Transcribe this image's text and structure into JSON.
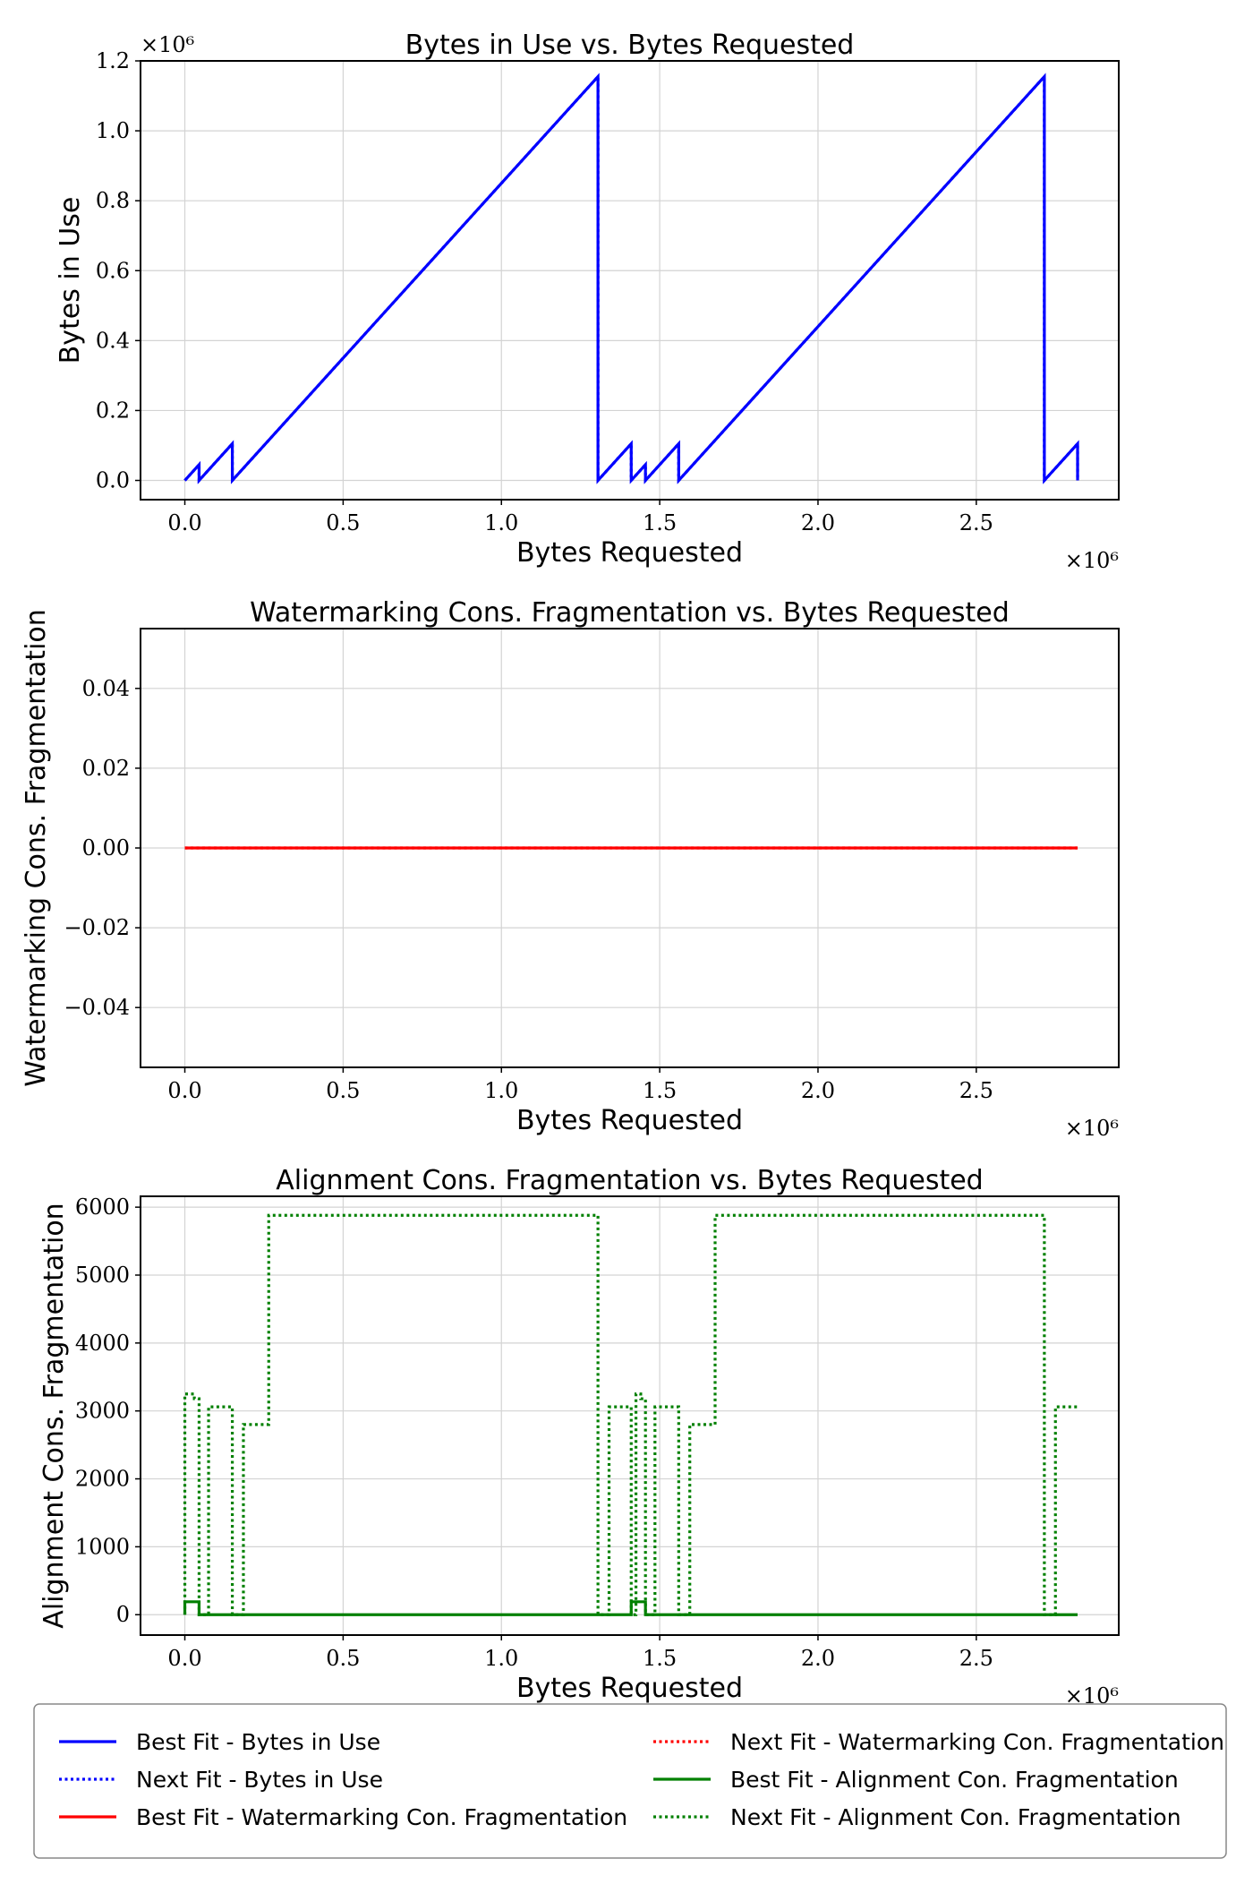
{
  "chart_data": [
    {
      "type": "line",
      "title": "Bytes in Use vs. Bytes Requested",
      "xlabel": "Bytes Requested",
      "ylabel": "Bytes in Use",
      "xlim": [
        -0.14,
        2.95
      ],
      "ylim": [
        -0.055,
        1.2
      ],
      "x_multiplier": "×10⁶",
      "y_multiplier": "×10⁶",
      "xticks": [
        0.0,
        0.5,
        1.0,
        1.5,
        2.0,
        2.5
      ],
      "yticks": [
        0.0,
        0.2,
        0.4,
        0.6,
        0.8,
        1.0,
        1.2
      ],
      "xtick_labels": [
        "0.0",
        "0.5",
        "1.0",
        "1.5",
        "2.0",
        "2.5"
      ],
      "ytick_labels": [
        "0.0",
        "0.2",
        "0.4",
        "0.6",
        "0.8",
        "1.0",
        "1.2"
      ],
      "ytick_decimals": 1,
      "series": [
        {
          "name": "Best Fit - Bytes in Use",
          "color": "#0000ff",
          "style": "solid",
          "x": [
            0.0,
            0.045,
            0.045,
            0.15,
            0.15,
            1.305,
            1.305,
            1.41,
            1.41,
            1.455,
            1.455,
            1.56,
            1.56,
            2.715,
            2.715,
            2.82,
            2.82
          ],
          "y": [
            0.0,
            0.045,
            0.0,
            0.105,
            0.0,
            1.155,
            0.0,
            0.105,
            0.0,
            0.045,
            0.0,
            0.105,
            0.0,
            1.155,
            0.0,
            0.105,
            0.0
          ]
        },
        {
          "name": "Next Fit - Bytes in Use",
          "color": "#0000ff",
          "style": "dotted",
          "x": [
            0.0,
            0.045,
            0.045,
            0.15,
            0.15,
            1.305,
            1.305,
            1.41,
            1.41,
            1.455,
            1.455,
            1.56,
            1.56,
            2.715,
            2.715,
            2.82,
            2.82
          ],
          "y": [
            0.0,
            0.045,
            0.0,
            0.105,
            0.0,
            1.155,
            0.0,
            0.105,
            0.0,
            0.045,
            0.0,
            0.105,
            0.0,
            1.155,
            0.0,
            0.105,
            0.0
          ]
        }
      ],
      "grid": true
    },
    {
      "type": "line",
      "title": "Watermarking Cons. Fragmentation vs. Bytes Requested",
      "xlabel": "Bytes Requested",
      "ylabel": "Watermarking Cons. Fragmentation",
      "xlim": [
        -0.14,
        2.95
      ],
      "ylim": [
        -0.055,
        0.055
      ],
      "x_multiplier": "×10⁶",
      "xticks": [
        0.0,
        0.5,
        1.0,
        1.5,
        2.0,
        2.5
      ],
      "yticks": [
        -0.04,
        -0.02,
        0.0,
        0.02,
        0.04
      ],
      "xtick_labels": [
        "0.0",
        "0.5",
        "1.0",
        "1.5",
        "2.0",
        "2.5"
      ],
      "ytick_labels": [
        "−0.04",
        "−0.02",
        "0.00",
        "0.02",
        "0.04"
      ],
      "ytick_decimals": 2,
      "series": [
        {
          "name": "Best Fit - Watermarking Con. Fragmentation",
          "color": "#ff0000",
          "style": "solid",
          "x": [
            0.0,
            2.82
          ],
          "y": [
            0.0,
            0.0
          ]
        },
        {
          "name": "Next Fit - Watermarking Con. Fragmentation",
          "color": "#ff0000",
          "style": "dotted",
          "x": [
            0.0,
            2.82
          ],
          "y": [
            0.0,
            0.0
          ]
        }
      ],
      "grid": true
    },
    {
      "type": "line",
      "title": "Alignment Cons. Fragmentation vs. Bytes Requested",
      "xlabel": "Bytes Requested",
      "ylabel": "Alignment Cons. Fragmentation",
      "xlim": [
        -0.14,
        2.95
      ],
      "ylim": [
        -300,
        6160
      ],
      "x_multiplier": "×10⁶",
      "xticks": [
        0.0,
        0.5,
        1.0,
        1.5,
        2.0,
        2.5
      ],
      "yticks": [
        0,
        1000,
        2000,
        3000,
        4000,
        5000,
        6000
      ],
      "xtick_labels": [
        "0.0",
        "0.5",
        "1.0",
        "1.5",
        "2.0",
        "2.5"
      ],
      "ytick_labels": [
        "0",
        "1000",
        "2000",
        "3000",
        "4000",
        "5000",
        "6000"
      ],
      "ytick_decimals": 0,
      "series": [
        {
          "name": "Best Fit - Alignment Con. Fragmentation",
          "color": "#008000",
          "style": "solid",
          "x": [
            0.0,
            0.0,
            0.045,
            0.045,
            1.41,
            1.41,
            1.455,
            1.455,
            2.82
          ],
          "y": [
            0,
            190,
            190,
            0,
            0,
            190,
            190,
            0,
            0
          ]
        },
        {
          "name": "Next Fit - Alignment Con. Fragmentation",
          "color": "#008000",
          "style": "dotted",
          "x": [
            0.0,
            0.0,
            0.03,
            0.03,
            0.045,
            0.045,
            0.075,
            0.075,
            0.15,
            0.15,
            0.185,
            0.185,
            0.265,
            0.265,
            1.305,
            1.305,
            1.34,
            1.34,
            1.41,
            1.41,
            1.425,
            1.425,
            1.44,
            1.44,
            1.455,
            1.455,
            1.485,
            1.485,
            1.56,
            1.56,
            1.595,
            1.595,
            1.675,
            1.675,
            2.715,
            2.715,
            2.75,
            2.75,
            2.82
          ],
          "y": [
            0,
            3250,
            3250,
            3180,
            3180,
            0,
            0,
            3060,
            3060,
            0,
            0,
            2800,
            2800,
            5880,
            5880,
            0,
            0,
            3060,
            3060,
            0,
            0,
            3250,
            3250,
            3180,
            3180,
            0,
            0,
            3060,
            3060,
            0,
            0,
            2800,
            2800,
            5880,
            5880,
            0,
            0,
            3060,
            3060
          ]
        }
      ],
      "grid": true
    }
  ],
  "legend": {
    "placement": "bottom",
    "entries": [
      {
        "label": "Best Fit - Bytes in Use",
        "color": "#0000ff",
        "style": "solid"
      },
      {
        "label": "Next Fit - Bytes in Use",
        "color": "#0000ff",
        "style": "dotted"
      },
      {
        "label": "Best Fit - Watermarking Con. Fragmentation",
        "color": "#ff0000",
        "style": "solid"
      },
      {
        "label": "Next Fit - Watermarking Con. Fragmentation",
        "color": "#ff0000",
        "style": "dotted"
      },
      {
        "label": "Best Fit - Alignment Con. Fragmentation",
        "color": "#008000",
        "style": "solid"
      },
      {
        "label": "Next Fit - Alignment Con. Fragmentation",
        "color": "#008000",
        "style": "dotted"
      }
    ]
  }
}
